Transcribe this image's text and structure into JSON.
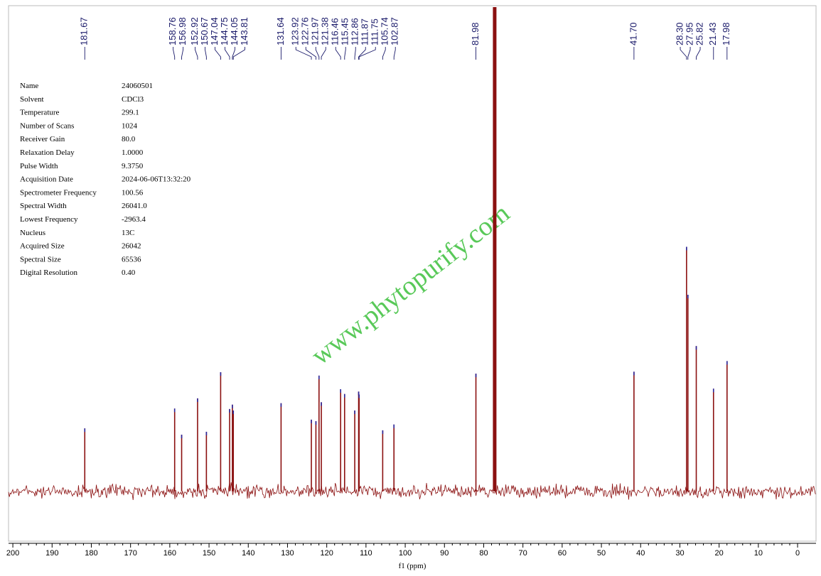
{
  "chart_data": {
    "type": "nmr",
    "x_label": "f1 (ppm)",
    "xlim": [
      201.1,
      -4.7
    ],
    "xticks": [
      200,
      190,
      180,
      170,
      160,
      150,
      140,
      130,
      120,
      110,
      100,
      90,
      80,
      70,
      60,
      50,
      40,
      30,
      20,
      10,
      0
    ],
    "ylim": [
      -10,
      100
    ],
    "color": "#8b1010",
    "peaks": {
      "x": [
        181.67,
        158.76,
        156.98,
        152.92,
        150.67,
        147.04,
        144.75,
        144.05,
        143.81,
        131.64,
        123.92,
        122.76,
        121.97,
        121.38,
        116.46,
        115.45,
        112.86,
        111.87,
        111.75,
        105.74,
        102.87,
        81.98,
        41.7,
        28.3,
        27.95,
        25.82,
        21.43,
        17.98
      ],
      "x_labels": [
        "181.67",
        "158.76",
        "156.98",
        "152.92",
        "150.67",
        "147.04",
        "144.75",
        "144.05",
        "143.81",
        "131.64",
        "123.92",
        "122.76",
        "121.97",
        "121.38",
        "116.46",
        "115.45",
        "112.86",
        "111.87",
        "111.75",
        "105.74",
        "102.87",
        "81.98",
        "41.70",
        "28.30",
        "27.95",
        "25.82",
        "21.43",
        "17.98"
      ],
      "values": [
        13.0,
        17.1,
        11.7,
        19.2,
        12.3,
        24.6,
        17.0,
        17.9,
        16.7,
        18.2,
        14.8,
        14.5,
        23.9,
        18.4,
        21.1,
        20.1,
        16.7,
        20.6,
        20.0,
        12.6,
        13.8,
        24.3,
        24.7,
        50.5,
        40.6,
        30.0,
        21.2,
        26.9
      ]
    },
    "solvent_peak": {
      "x": 77.2,
      "value": 100
    }
  },
  "parameters": {
    "rows": [
      [
        "Name",
        "24060501"
      ],
      [
        "Solvent",
        "CDCl3"
      ],
      [
        "Temperature",
        "299.1"
      ],
      [
        "Number of Scans",
        "1024"
      ],
      [
        "Receiver Gain",
        "80.0"
      ],
      [
        "Relaxation Delay",
        "1.0000"
      ],
      [
        "Pulse Width",
        "9.3750"
      ],
      [
        "Acquisition Date",
        "2024-06-06T13:32:20"
      ],
      [
        "Spectrometer Frequency",
        "100.56"
      ],
      [
        "Spectral Width",
        "26041.0"
      ],
      [
        "Lowest Frequency",
        "-2963.4"
      ],
      [
        "Nucleus",
        "13C"
      ],
      [
        "Acquired Size",
        "26042"
      ],
      [
        "Spectral Size",
        "65536"
      ],
      [
        "Digital Resolution",
        "0.40"
      ]
    ]
  },
  "watermark": "www.phytopurify.com"
}
